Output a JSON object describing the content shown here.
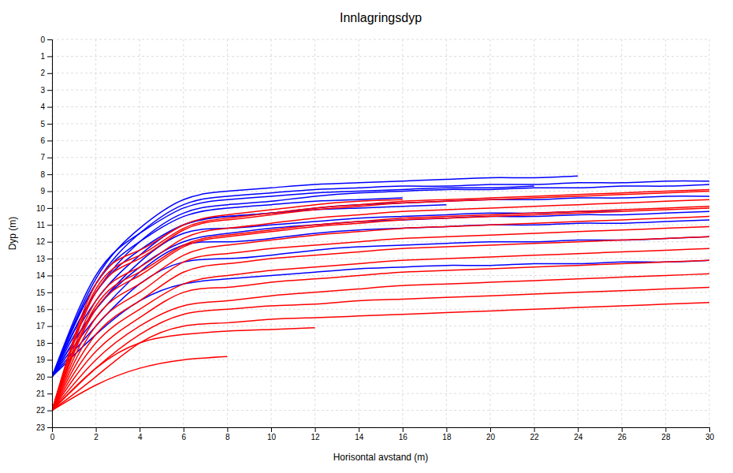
{
  "chart_data": {
    "type": "line",
    "title": "Innlagringsdyp",
    "x_label": "Horisontal avstand (m)",
    "y_label": "Dyp (m)",
    "xlim": [
      0,
      30
    ],
    "ylim": [
      23,
      0
    ],
    "xticks": [
      0,
      2,
      4,
      6,
      8,
      10,
      12,
      14,
      16,
      18,
      20,
      22,
      24,
      26,
      28,
      30
    ],
    "yticks": [
      0,
      1,
      2,
      3,
      4,
      5,
      6,
      7,
      8,
      9,
      10,
      11,
      12,
      13,
      14,
      15,
      16,
      17,
      18,
      19,
      20,
      21,
      22,
      23
    ],
    "grid": true,
    "series": [
      {
        "color": "#0000FF",
        "x": [
          0,
          2,
          4,
          6,
          8,
          10,
          12,
          14,
          16,
          18,
          20,
          22,
          24,
          26,
          28,
          30
        ],
        "values": [
          20,
          17.5,
          15.5,
          14.5,
          14.2,
          14.0,
          13.8,
          13.6,
          13.5,
          13.4,
          13.4,
          13.3,
          13.3,
          13.2,
          13.2,
          13.1
        ]
      },
      {
        "color": "#0000FF",
        "x": [
          0,
          2,
          4,
          6,
          8,
          10,
          12,
          14,
          16,
          18,
          20,
          22,
          24,
          26,
          28,
          30
        ],
        "values": [
          20,
          17.0,
          14.5,
          13.2,
          13.0,
          12.8,
          12.5,
          12.3,
          12.2,
          12.1,
          12.0,
          12.0,
          11.9,
          11.9,
          11.8,
          11.7
        ]
      },
      {
        "color": "#0000FF",
        "x": [
          0,
          2,
          4,
          6,
          8,
          10,
          12,
          14,
          16,
          18,
          20,
          22,
          24,
          26,
          28,
          30
        ],
        "values": [
          20,
          16.5,
          13.8,
          12.2,
          12.0,
          11.8,
          11.5,
          11.3,
          11.2,
          11.1,
          11.0,
          11.0,
          10.9,
          10.9,
          10.8,
          10.7
        ]
      },
      {
        "color": "#0000FF",
        "x": [
          0,
          2,
          4,
          6,
          8,
          10,
          12,
          14,
          16,
          18,
          20,
          22,
          24,
          26
        ],
        "values": [
          20,
          16.0,
          13.2,
          11.5,
          11.2,
          11.0,
          10.8,
          10.6,
          10.5,
          10.4,
          10.3,
          10.3,
          10.2,
          10.2
        ]
      },
      {
        "color": "#0000FF",
        "x": [
          0,
          2,
          4,
          6,
          8,
          10,
          12,
          14,
          16,
          18,
          20,
          22,
          24,
          26,
          28,
          30
        ],
        "values": [
          20,
          15.5,
          12.8,
          11.0,
          10.5,
          10.3,
          10.0,
          9.8,
          9.7,
          9.6,
          9.5,
          9.5,
          9.4,
          9.4,
          9.3,
          9.3
        ]
      },
      {
        "color": "#0000FF",
        "x": [
          0,
          2,
          4,
          6,
          8,
          10,
          12,
          14,
          16,
          18,
          20,
          22,
          24,
          26,
          28,
          30
        ],
        "values": [
          20,
          15.0,
          12.0,
          10.3,
          9.8,
          9.6,
          9.3,
          9.1,
          9.0,
          8.9,
          8.9,
          8.8,
          8.8,
          8.7,
          8.7,
          8.6
        ]
      },
      {
        "color": "#0000FF",
        "x": [
          0,
          2,
          4,
          6,
          8,
          10,
          12,
          14,
          16,
          18,
          20,
          22,
          24,
          26,
          28,
          30
        ],
        "values": [
          20,
          14.5,
          11.5,
          9.8,
          9.3,
          9.1,
          8.9,
          8.8,
          8.7,
          8.7,
          8.6,
          8.6,
          8.5,
          8.5,
          8.4,
          8.4
        ]
      },
      {
        "color": "#0000FF",
        "x": [
          0,
          2,
          4,
          6,
          8,
          10,
          12,
          14,
          16,
          18,
          20,
          22,
          24
        ],
        "values": [
          20,
          14.2,
          11.2,
          9.5,
          9.0,
          8.8,
          8.6,
          8.5,
          8.4,
          8.3,
          8.2,
          8.2,
          8.1
        ]
      },
      {
        "color": "#0000FF",
        "x": [
          0,
          2,
          4,
          6,
          8,
          10,
          12,
          14,
          16,
          18,
          20,
          22
        ],
        "values": [
          20,
          14.0,
          11.5,
          10.0,
          9.5,
          9.3,
          9.1,
          9.0,
          8.9,
          8.8,
          8.8,
          8.7
        ]
      },
      {
        "color": "#0000FF",
        "x": [
          0,
          2,
          4,
          6,
          8,
          10,
          12,
          14,
          16
        ],
        "values": [
          20,
          14.5,
          12.0,
          10.5,
          10.0,
          9.8,
          9.6,
          9.5,
          9.4
        ]
      },
      {
        "color": "#0000FF",
        "x": [
          0,
          2,
          4,
          6,
          8,
          10,
          12,
          14,
          16,
          18
        ],
        "values": [
          20,
          15.0,
          12.5,
          11.0,
          10.5,
          10.3,
          10.1,
          10.0,
          9.9,
          9.8
        ]
      },
      {
        "color": "#0000FF",
        "x": [
          0,
          2,
          4,
          6,
          8,
          10,
          12,
          14,
          16,
          18,
          20,
          22,
          24,
          26,
          28,
          30
        ],
        "values": [
          20,
          16.0,
          13.5,
          12.0,
          11.5,
          11.2,
          11.0,
          10.8,
          10.7,
          10.6,
          10.5,
          10.5,
          10.4,
          10.4,
          10.3,
          10.2
        ]
      },
      {
        "color": "#FF0000",
        "x": [
          0,
          2,
          4,
          6,
          8,
          10,
          12,
          14,
          16,
          18,
          20,
          22,
          24,
          26,
          28,
          30
        ],
        "values": [
          22,
          20.0,
          18.0,
          17.0,
          16.8,
          16.6,
          16.5,
          16.4,
          16.3,
          16.2,
          16.1,
          16.0,
          15.9,
          15.8,
          15.7,
          15.6
        ]
      },
      {
        "color": "#FF0000",
        "x": [
          0,
          2,
          4,
          6,
          8,
          10,
          12,
          14,
          16,
          18,
          20,
          22,
          24,
          26,
          28,
          30
        ],
        "values": [
          22,
          19.5,
          17.5,
          16.3,
          16.0,
          15.8,
          15.7,
          15.5,
          15.4,
          15.3,
          15.2,
          15.1,
          15.0,
          14.9,
          14.8,
          14.7
        ]
      },
      {
        "color": "#FF0000",
        "x": [
          0,
          2,
          4,
          6,
          8,
          10,
          12,
          14,
          16,
          18,
          20,
          22,
          24,
          26,
          28,
          30
        ],
        "values": [
          22,
          19.0,
          17.0,
          15.8,
          15.5,
          15.2,
          15.0,
          14.8,
          14.6,
          14.5,
          14.4,
          14.3,
          14.2,
          14.1,
          14.0,
          13.9
        ]
      },
      {
        "color": "#FF0000",
        "x": [
          0,
          2,
          4,
          6,
          8,
          10,
          12,
          14,
          16,
          18,
          20,
          22,
          24,
          26,
          28,
          30
        ],
        "values": [
          22,
          18.5,
          16.5,
          15.0,
          14.7,
          14.4,
          14.2,
          14.0,
          13.8,
          13.7,
          13.6,
          13.5,
          13.4,
          13.3,
          13.2,
          13.1
        ]
      },
      {
        "color": "#FF0000",
        "x": [
          0,
          2,
          4,
          6,
          8,
          10,
          12,
          14,
          16,
          18,
          20,
          22,
          24,
          26,
          28,
          30
        ],
        "values": [
          22,
          18.0,
          16.0,
          14.5,
          14.0,
          13.7,
          13.5,
          13.3,
          13.1,
          13.0,
          12.9,
          12.8,
          12.7,
          12.6,
          12.5,
          12.4
        ]
      },
      {
        "color": "#FF0000",
        "x": [
          0,
          2,
          4,
          6,
          8,
          10,
          12,
          14,
          16,
          18,
          20,
          22,
          24,
          26,
          28,
          30
        ],
        "values": [
          22,
          17.5,
          15.5,
          13.8,
          13.3,
          13.0,
          12.8,
          12.6,
          12.4,
          12.3,
          12.2,
          12.1,
          12.0,
          11.9,
          11.8,
          11.7
        ]
      },
      {
        "color": "#FF0000",
        "x": [
          0,
          2,
          4,
          6,
          8,
          10,
          12,
          14,
          16,
          18,
          20,
          22,
          24,
          26,
          28,
          30
        ],
        "values": [
          22,
          17.0,
          15.0,
          13.2,
          12.7,
          12.4,
          12.2,
          12.0,
          11.8,
          11.7,
          11.6,
          11.5,
          11.4,
          11.3,
          11.2,
          11.1
        ]
      },
      {
        "color": "#FF0000",
        "x": [
          0,
          2,
          4,
          6,
          8,
          10,
          12,
          14,
          16,
          18,
          20,
          22,
          24,
          26,
          28,
          30
        ],
        "values": [
          22,
          16.5,
          14.5,
          12.8,
          12.2,
          11.9,
          11.6,
          11.4,
          11.2,
          11.1,
          11.0,
          10.9,
          10.8,
          10.7,
          10.6,
          10.5
        ]
      },
      {
        "color": "#FF0000",
        "x": [
          0,
          2,
          4,
          6,
          8,
          10,
          12,
          14,
          16,
          18,
          20,
          22,
          24,
          26,
          28,
          30
        ],
        "values": [
          22,
          16.0,
          14.0,
          12.3,
          11.7,
          11.4,
          11.1,
          10.9,
          10.7,
          10.6,
          10.5,
          10.4,
          10.3,
          10.2,
          10.1,
          10.0
        ]
      },
      {
        "color": "#FF0000",
        "x": [
          0,
          2,
          4,
          6,
          8,
          10,
          12,
          14,
          16,
          18,
          20,
          22,
          24,
          26,
          28,
          30
        ],
        "values": [
          22,
          15.5,
          13.5,
          11.8,
          11.2,
          10.9,
          10.6,
          10.4,
          10.2,
          10.1,
          10.0,
          9.9,
          9.8,
          9.7,
          9.6,
          9.5
        ]
      },
      {
        "color": "#FF0000",
        "x": [
          0,
          2,
          4,
          6,
          8,
          10,
          12,
          14,
          16,
          18,
          20,
          22,
          24,
          26,
          28,
          30
        ],
        "values": [
          22,
          15.0,
          13.0,
          11.3,
          10.7,
          10.4,
          10.1,
          9.9,
          9.7,
          9.6,
          9.5,
          9.4,
          9.3,
          9.2,
          9.1,
          9.0
        ]
      },
      {
        "color": "#FF0000",
        "x": [
          0,
          2,
          4,
          6,
          8,
          10,
          12,
          14,
          16
        ],
        "values": [
          22,
          14.5,
          12.5,
          11.0,
          10.4,
          10.1,
          9.8,
          9.6,
          9.5
        ]
      },
      {
        "color": "#FF0000",
        "x": [
          0,
          2,
          4,
          6,
          8,
          10,
          12
        ],
        "values": [
          22,
          19.5,
          18.0,
          17.5,
          17.3,
          17.2,
          17.1
        ]
      },
      {
        "color": "#FF0000",
        "x": [
          0,
          2,
          4,
          6,
          8
        ],
        "values": [
          22,
          20.5,
          19.5,
          19.0,
          18.8
        ]
      },
      {
        "color": "#FF0000",
        "x": [
          0,
          2,
          4,
          6,
          8,
          10,
          12,
          14,
          16,
          18,
          20,
          22,
          24,
          26,
          28,
          30
        ],
        "values": [
          22,
          14.8,
          12.8,
          11.2,
          10.6,
          10.3,
          10.0,
          9.8,
          9.6,
          9.5,
          9.4,
          9.3,
          9.2,
          9.1,
          9.0,
          8.9
        ]
      },
      {
        "color": "#FF0000",
        "x": [
          0,
          2,
          4,
          6,
          8,
          10,
          12,
          14,
          16,
          18,
          20,
          22,
          24,
          26,
          28,
          30
        ],
        "values": [
          22,
          15.8,
          13.8,
          12.2,
          11.6,
          11.3,
          11.0,
          10.8,
          10.6,
          10.5,
          10.4,
          10.3,
          10.2,
          10.1,
          10.0,
          9.9
        ]
      }
    ]
  }
}
